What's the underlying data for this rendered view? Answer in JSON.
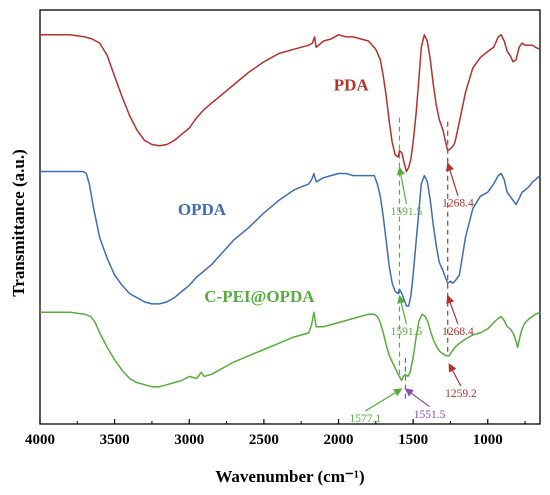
{
  "chart_data": {
    "type": "line",
    "xlabel": "Wavenumber (cm⁻¹)",
    "ylabel": "Transmittance (a.u.)",
    "xlim": [
      4000,
      650
    ],
    "x_reversed": true,
    "y_ticks_shown": false,
    "x_ticks": [
      "4000",
      "3500",
      "3000",
      "2500",
      "2000",
      "1500",
      "1000"
    ],
    "series": [
      {
        "name": "PDA",
        "color": "#b2322c",
        "label_pos": [
          1915,
          0.805
        ],
        "points": [
          [
            4000,
            0.94
          ],
          [
            3800,
            0.94
          ],
          [
            3700,
            0.935
          ],
          [
            3650,
            0.93
          ],
          [
            3600,
            0.92
          ],
          [
            3550,
            0.89
          ],
          [
            3500,
            0.84
          ],
          [
            3450,
            0.79
          ],
          [
            3400,
            0.745
          ],
          [
            3350,
            0.71
          ],
          [
            3300,
            0.685
          ],
          [
            3250,
            0.675
          ],
          [
            3200,
            0.672
          ],
          [
            3150,
            0.675
          ],
          [
            3100,
            0.685
          ],
          [
            3050,
            0.7
          ],
          [
            3000,
            0.715
          ],
          [
            2950,
            0.74
          ],
          [
            2900,
            0.76
          ],
          [
            2850,
            0.775
          ],
          [
            2800,
            0.79
          ],
          [
            2700,
            0.82
          ],
          [
            2600,
            0.85
          ],
          [
            2500,
            0.875
          ],
          [
            2400,
            0.895
          ],
          [
            2300,
            0.905
          ],
          [
            2200,
            0.915
          ],
          [
            2175,
            0.92
          ],
          [
            2160,
            0.935
          ],
          [
            2150,
            0.91
          ],
          [
            2100,
            0.925
          ],
          [
            2050,
            0.93
          ],
          [
            2000,
            0.94
          ],
          [
            1950,
            0.935
          ],
          [
            1900,
            0.935
          ],
          [
            1850,
            0.93
          ],
          [
            1800,
            0.925
          ],
          [
            1750,
            0.905
          ],
          [
            1720,
            0.88
          ],
          [
            1700,
            0.84
          ],
          [
            1680,
            0.79
          ],
          [
            1660,
            0.73
          ],
          [
            1640,
            0.68
          ],
          [
            1620,
            0.65
          ],
          [
            1600,
            0.645
          ],
          [
            1591.5,
            0.66
          ],
          [
            1575,
            0.655
          ],
          [
            1560,
            0.63
          ],
          [
            1545,
            0.61
          ],
          [
            1530,
            0.62
          ],
          [
            1515,
            0.64
          ],
          [
            1500,
            0.68
          ],
          [
            1480,
            0.75
          ],
          [
            1460,
            0.84
          ],
          [
            1445,
            0.91
          ],
          [
            1425,
            0.94
          ],
          [
            1405,
            0.925
          ],
          [
            1385,
            0.88
          ],
          [
            1365,
            0.82
          ],
          [
            1345,
            0.77
          ],
          [
            1325,
            0.735
          ],
          [
            1300,
            0.71
          ],
          [
            1285,
            0.685
          ],
          [
            1268.4,
            0.66
          ],
          [
            1250,
            0.665
          ],
          [
            1235,
            0.67
          ],
          [
            1220,
            0.68
          ],
          [
            1190,
            0.73
          ],
          [
            1150,
            0.8
          ],
          [
            1100,
            0.86
          ],
          [
            1050,
            0.885
          ],
          [
            1000,
            0.9
          ],
          [
            960,
            0.91
          ],
          [
            930,
            0.935
          ],
          [
            910,
            0.94
          ],
          [
            890,
            0.925
          ],
          [
            870,
            0.9
          ],
          [
            850,
            0.89
          ],
          [
            830,
            0.875
          ],
          [
            810,
            0.88
          ],
          [
            790,
            0.91
          ],
          [
            770,
            0.92
          ],
          [
            750,
            0.915
          ],
          [
            720,
            0.915
          ],
          [
            700,
            0.915
          ],
          [
            680,
            0.91
          ],
          [
            650,
            0.905
          ]
        ]
      },
      {
        "name": "OPDA",
        "color": "#3e6db5",
        "label_pos": [
          2915,
          0.505
        ],
        "points": [
          [
            4000,
            0.61
          ],
          [
            3750,
            0.61
          ],
          [
            3710,
            0.61
          ],
          [
            3690,
            0.605
          ],
          [
            3670,
            0.58
          ],
          [
            3640,
            0.52
          ],
          [
            3600,
            0.45
          ],
          [
            3550,
            0.4
          ],
          [
            3500,
            0.36
          ],
          [
            3450,
            0.335
          ],
          [
            3400,
            0.315
          ],
          [
            3350,
            0.305
          ],
          [
            3300,
            0.295
          ],
          [
            3250,
            0.29
          ],
          [
            3200,
            0.29
          ],
          [
            3150,
            0.295
          ],
          [
            3100,
            0.305
          ],
          [
            3050,
            0.32
          ],
          [
            3000,
            0.335
          ],
          [
            2950,
            0.355
          ],
          [
            2900,
            0.37
          ],
          [
            2850,
            0.385
          ],
          [
            2800,
            0.405
          ],
          [
            2700,
            0.445
          ],
          [
            2600,
            0.475
          ],
          [
            2500,
            0.51
          ],
          [
            2400,
            0.54
          ],
          [
            2300,
            0.565
          ],
          [
            2200,
            0.58
          ],
          [
            2180,
            0.59
          ],
          [
            2165,
            0.605
          ],
          [
            2150,
            0.585
          ],
          [
            2100,
            0.595
          ],
          [
            2050,
            0.6
          ],
          [
            2000,
            0.605
          ],
          [
            1950,
            0.605
          ],
          [
            1900,
            0.6
          ],
          [
            1850,
            0.6
          ],
          [
            1800,
            0.6
          ],
          [
            1760,
            0.6
          ],
          [
            1740,
            0.58
          ],
          [
            1720,
            0.55
          ],
          [
            1700,
            0.5
          ],
          [
            1680,
            0.44
          ],
          [
            1660,
            0.38
          ],
          [
            1640,
            0.34
          ],
          [
            1620,
            0.32
          ],
          [
            1600,
            0.315
          ],
          [
            1591.5,
            0.325
          ],
          [
            1575,
            0.315
          ],
          [
            1560,
            0.3
          ],
          [
            1545,
            0.285
          ],
          [
            1530,
            0.285
          ],
          [
            1515,
            0.31
          ],
          [
            1500,
            0.36
          ],
          [
            1480,
            0.44
          ],
          [
            1460,
            0.52
          ],
          [
            1445,
            0.58
          ],
          [
            1425,
            0.6
          ],
          [
            1405,
            0.585
          ],
          [
            1385,
            0.54
          ],
          [
            1365,
            0.48
          ],
          [
            1345,
            0.43
          ],
          [
            1325,
            0.39
          ],
          [
            1300,
            0.37
          ],
          [
            1285,
            0.355
          ],
          [
            1268.4,
            0.34
          ],
          [
            1250,
            0.345
          ],
          [
            1235,
            0.34
          ],
          [
            1220,
            0.345
          ],
          [
            1190,
            0.36
          ],
          [
            1150,
            0.45
          ],
          [
            1100,
            0.52
          ],
          [
            1050,
            0.55
          ],
          [
            1000,
            0.56
          ],
          [
            960,
            0.58
          ],
          [
            930,
            0.6
          ],
          [
            910,
            0.605
          ],
          [
            890,
            0.59
          ],
          [
            870,
            0.56
          ],
          [
            850,
            0.55
          ],
          [
            830,
            0.54
          ],
          [
            810,
            0.53
          ],
          [
            790,
            0.545
          ],
          [
            770,
            0.56
          ],
          [
            750,
            0.565
          ],
          [
            720,
            0.575
          ],
          [
            700,
            0.585
          ],
          [
            680,
            0.59
          ],
          [
            650,
            0.6
          ]
        ]
      },
      {
        "name": "C-PEI@OPDA",
        "color": "#56ad3e",
        "label_pos": [
          2530,
          0.295
        ],
        "points": [
          [
            4000,
            0.27
          ],
          [
            3800,
            0.27
          ],
          [
            3700,
            0.265
          ],
          [
            3660,
            0.26
          ],
          [
            3630,
            0.245
          ],
          [
            3600,
            0.22
          ],
          [
            3550,
            0.185
          ],
          [
            3500,
            0.155
          ],
          [
            3450,
            0.13
          ],
          [
            3400,
            0.11
          ],
          [
            3350,
            0.1
          ],
          [
            3300,
            0.095
          ],
          [
            3250,
            0.09
          ],
          [
            3200,
            0.09
          ],
          [
            3150,
            0.095
          ],
          [
            3100,
            0.1
          ],
          [
            3050,
            0.105
          ],
          [
            3000,
            0.115
          ],
          [
            2950,
            0.11
          ],
          [
            2920,
            0.125
          ],
          [
            2900,
            0.115
          ],
          [
            2850,
            0.12
          ],
          [
            2800,
            0.13
          ],
          [
            2700,
            0.15
          ],
          [
            2600,
            0.165
          ],
          [
            2500,
            0.18
          ],
          [
            2400,
            0.195
          ],
          [
            2300,
            0.21
          ],
          [
            2200,
            0.22
          ],
          [
            2180,
            0.24
          ],
          [
            2165,
            0.27
          ],
          [
            2150,
            0.235
          ],
          [
            2100,
            0.235
          ],
          [
            2050,
            0.24
          ],
          [
            2000,
            0.245
          ],
          [
            1950,
            0.25
          ],
          [
            1900,
            0.255
          ],
          [
            1850,
            0.26
          ],
          [
            1800,
            0.265
          ],
          [
            1760,
            0.265
          ],
          [
            1740,
            0.26
          ],
          [
            1720,
            0.245
          ],
          [
            1700,
            0.22
          ],
          [
            1680,
            0.19
          ],
          [
            1660,
            0.165
          ],
          [
            1640,
            0.15
          ],
          [
            1620,
            0.135
          ],
          [
            1600,
            0.12
          ],
          [
            1577.1,
            0.105
          ],
          [
            1565,
            0.115
          ],
          [
            1551.5,
            0.12
          ],
          [
            1535,
            0.115
          ],
          [
            1520,
            0.125
          ],
          [
            1500,
            0.16
          ],
          [
            1480,
            0.21
          ],
          [
            1460,
            0.25
          ],
          [
            1440,
            0.265
          ],
          [
            1420,
            0.26
          ],
          [
            1400,
            0.245
          ],
          [
            1380,
            0.22
          ],
          [
            1360,
            0.2
          ],
          [
            1340,
            0.185
          ],
          [
            1320,
            0.175
          ],
          [
            1300,
            0.17
          ],
          [
            1280,
            0.165
          ],
          [
            1259.2,
            0.165
          ],
          [
            1240,
            0.175
          ],
          [
            1220,
            0.185
          ],
          [
            1190,
            0.195
          ],
          [
            1150,
            0.205
          ],
          [
            1100,
            0.215
          ],
          [
            1050,
            0.22
          ],
          [
            1000,
            0.23
          ],
          [
            960,
            0.245
          ],
          [
            930,
            0.255
          ],
          [
            910,
            0.26
          ],
          [
            890,
            0.25
          ],
          [
            870,
            0.235
          ],
          [
            850,
            0.23
          ],
          [
            830,
            0.22
          ],
          [
            815,
            0.205
          ],
          [
            800,
            0.185
          ],
          [
            785,
            0.21
          ],
          [
            770,
            0.23
          ],
          [
            750,
            0.245
          ],
          [
            720,
            0.255
          ],
          [
            700,
            0.26
          ],
          [
            680,
            0.265
          ],
          [
            650,
            0.27
          ]
        ]
      }
    ],
    "reference_lines": [
      {
        "x": 1591.5,
        "color": "#56ad3e",
        "from": 0.12,
        "to": 0.74
      },
      {
        "x": 1268.4,
        "color": "#b2322c",
        "from": 0.17,
        "to": 0.73
      },
      {
        "x": 1551.5,
        "color": "#8a4fb0",
        "from": 0.06,
        "to": 0.16
      }
    ],
    "annotations": [
      {
        "text": "1591.5",
        "color": "#56ad3e",
        "x": 1591.5,
        "label_x": 1545,
        "label_y": 0.505,
        "target_y": 0.62
      },
      {
        "text": "1268.4",
        "color": "#b2322c",
        "x": 1268.4,
        "label_x": 1200,
        "label_y": 0.525,
        "target_y": 0.63
      },
      {
        "text": "1591.5",
        "color": "#56ad3e",
        "x": 1591.5,
        "label_x": 1545,
        "label_y": 0.215,
        "target_y": 0.31
      },
      {
        "text": "1268.4",
        "color": "#b2322c",
        "x": 1268.4,
        "label_x": 1200,
        "label_y": 0.215,
        "target_y": 0.31
      },
      {
        "text": "1577.1",
        "color": "#56ad3e",
        "x": 1577.1,
        "label_x": 1820,
        "label_y": 0.005,
        "target_y": 0.085
      },
      {
        "text": "1551.5",
        "color": "#8a4fb0",
        "x": 1551.5,
        "label_x": 1390,
        "label_y": 0.015,
        "target_y": 0.085
      },
      {
        "text": "1259.2",
        "color": "#b2322c",
        "x": 1259.2,
        "label_x": 1180,
        "label_y": 0.065,
        "target_y": 0.145
      }
    ]
  }
}
